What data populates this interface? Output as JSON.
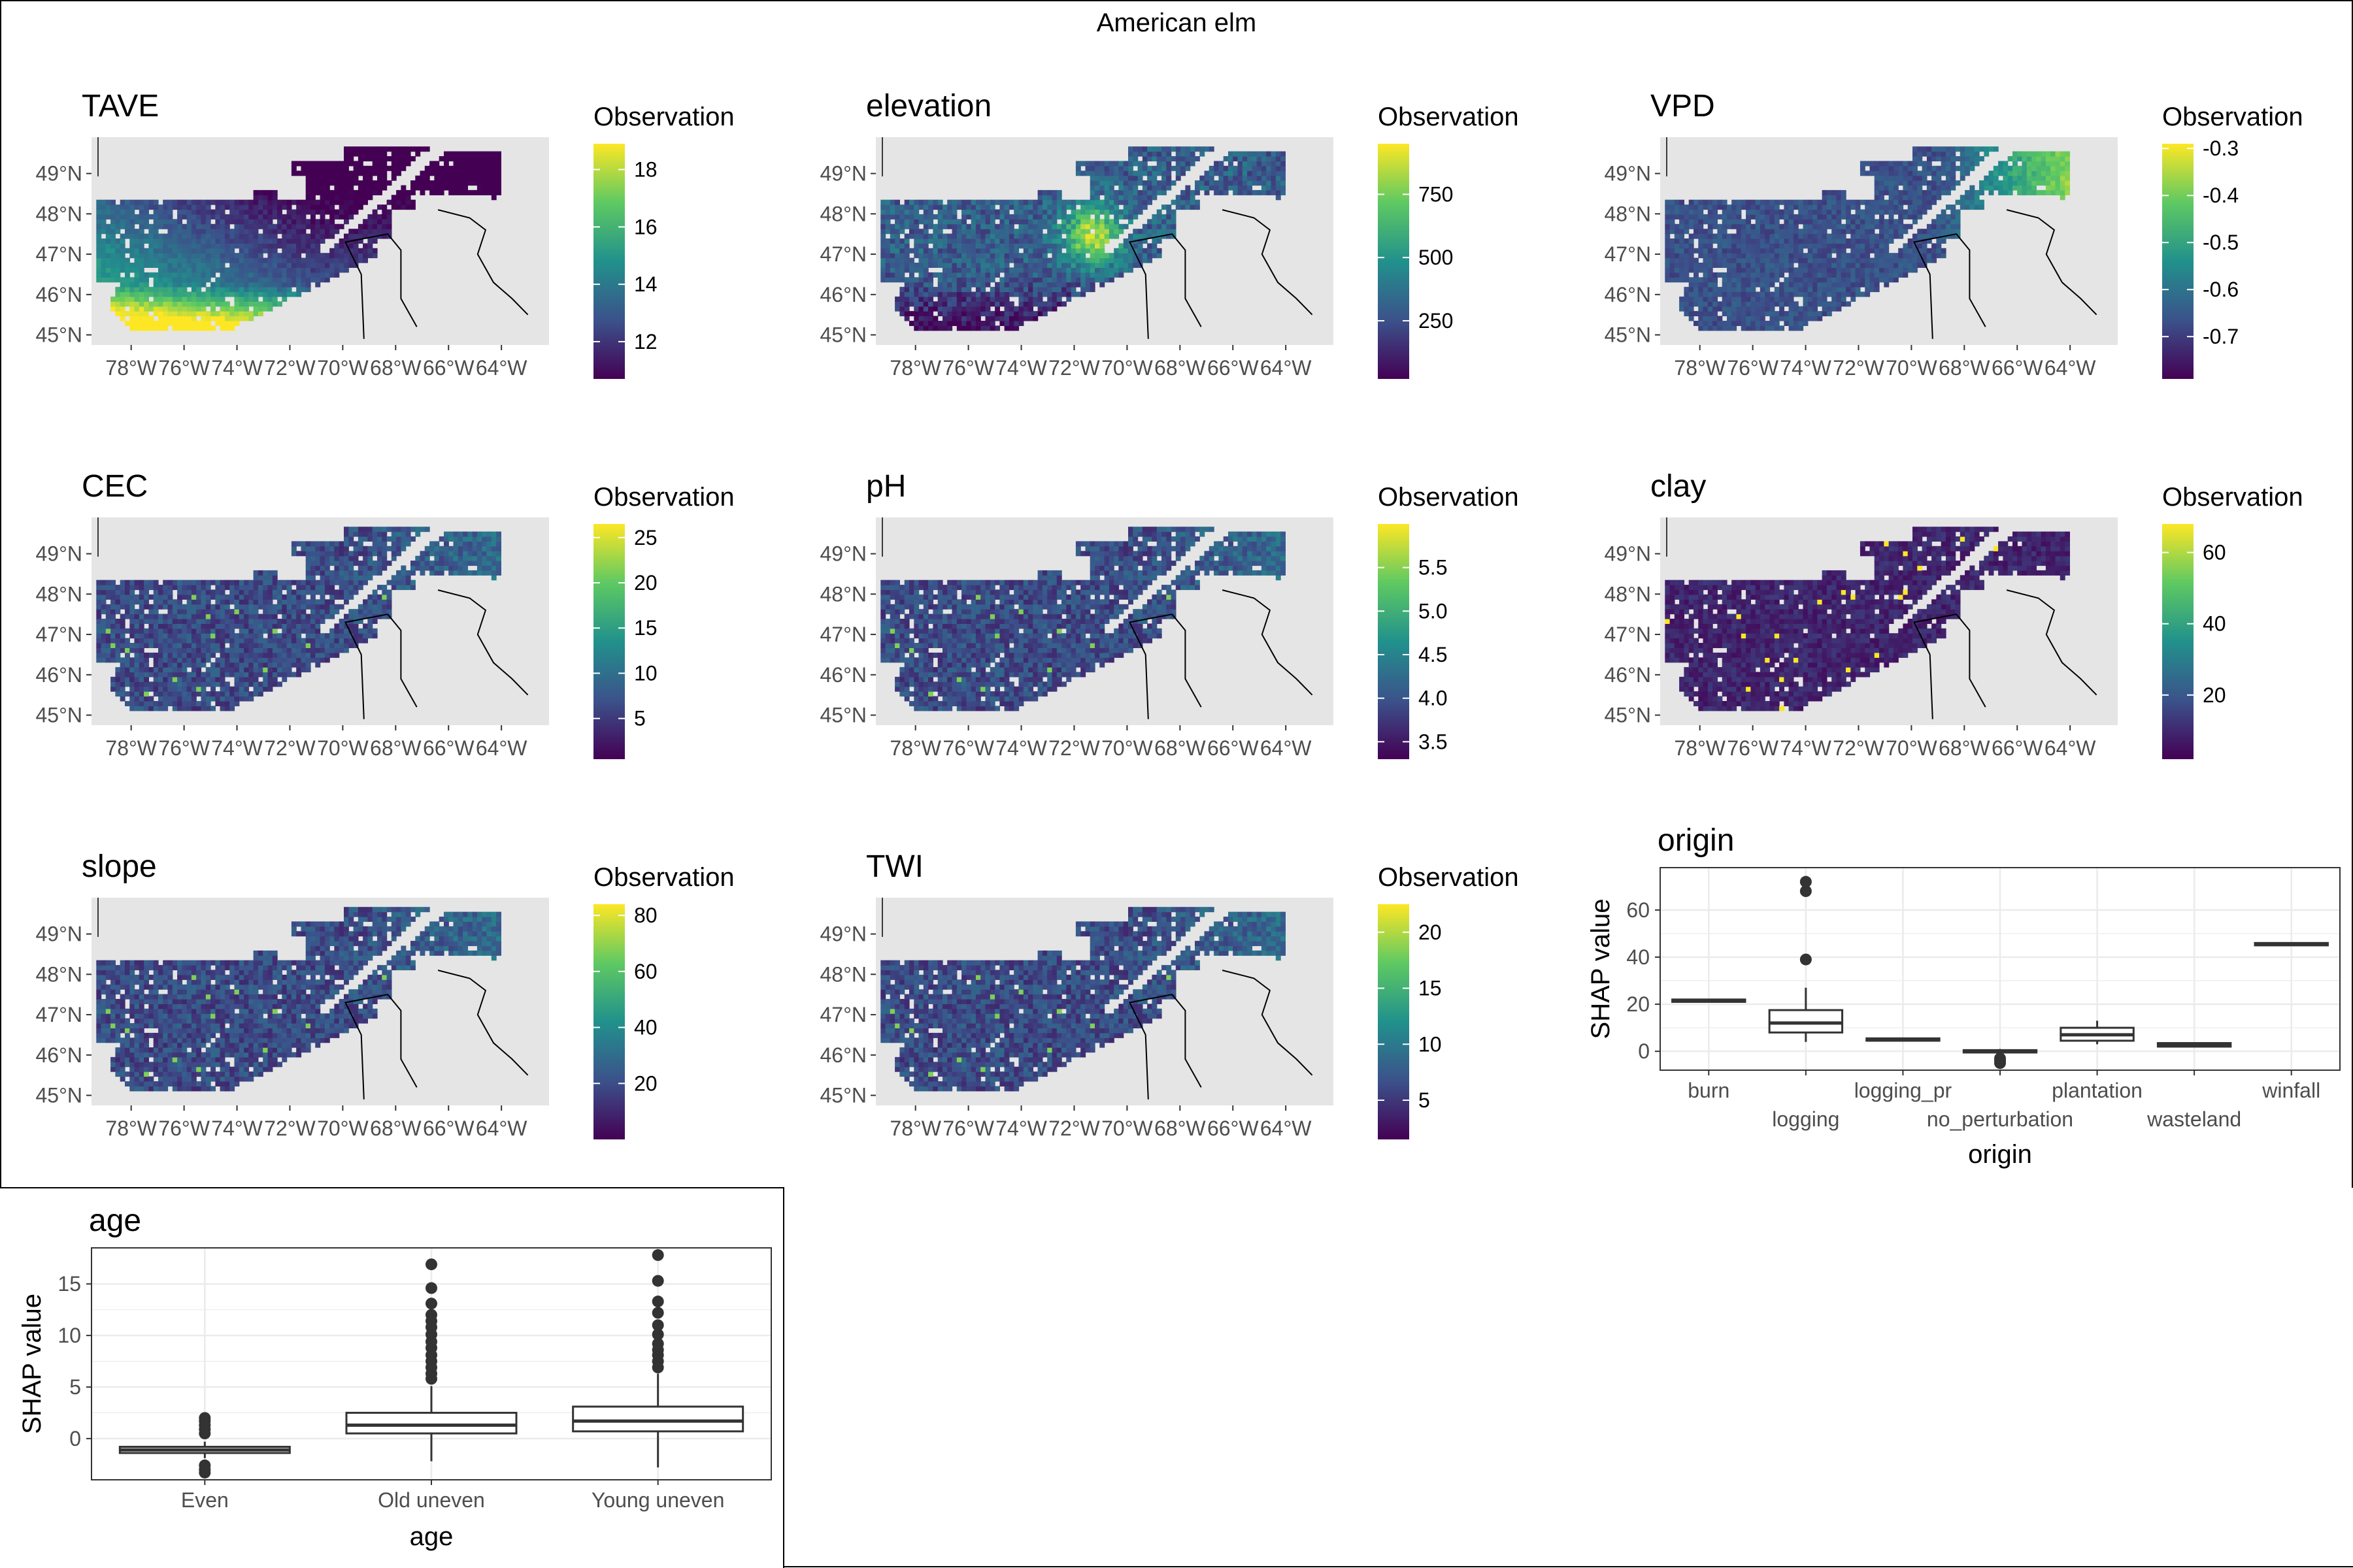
{
  "figure": {
    "title": "American elm",
    "colors": {
      "land": "#e5e5e5",
      "panel_border": "#333333",
      "grid": "#ebebeb",
      "viridis": [
        "#440154",
        "#3b528b",
        "#21918c",
        "#5ec962",
        "#fde725"
      ]
    }
  },
  "chart_data": [
    {
      "type": "heatmap",
      "title": "TAVE",
      "legend_title": "Observation",
      "colorbar": {
        "min": 10.7,
        "max": 18.9,
        "ticks": [
          "12",
          "14",
          "16",
          "18"
        ],
        "tick_values": [
          12,
          14,
          16,
          18
        ]
      },
      "pattern": "south_hot",
      "x_ticks": [
        "78°W",
        "76°W",
        "74°W",
        "72°W",
        "70°W",
        "68°W",
        "66°W",
        "64°W"
      ],
      "y_ticks": [
        "49°N",
        "48°N",
        "47°N",
        "46°N",
        "45°N"
      ]
    },
    {
      "type": "heatmap",
      "title": "elevation",
      "legend_title": "Observation",
      "colorbar": {
        "min": 20,
        "max": 950,
        "ticks": [
          "250",
          "500",
          "750"
        ],
        "tick_values": [
          250,
          500,
          750
        ]
      },
      "pattern": "highlands",
      "x_ticks": [
        "78°W",
        "76°W",
        "74°W",
        "72°W",
        "70°W",
        "68°W",
        "66°W",
        "64°W"
      ],
      "y_ticks": [
        "49°N",
        "48°N",
        "47°N",
        "46°N",
        "45°N"
      ]
    },
    {
      "type": "heatmap",
      "title": "VPD",
      "legend_title": "Observation",
      "colorbar": {
        "min": -0.79,
        "max": -0.29,
        "ticks": [
          "-0.3",
          "-0.4",
          "-0.5",
          "-0.6",
          "-0.7"
        ],
        "tick_values": [
          -0.3,
          -0.4,
          -0.5,
          -0.6,
          -0.7
        ]
      },
      "pattern": "east_high",
      "x_ticks": [
        "78°W",
        "76°W",
        "74°W",
        "72°W",
        "70°W",
        "68°W",
        "66°W",
        "64°W"
      ],
      "y_ticks": [
        "49°N",
        "48°N",
        "47°N",
        "46°N",
        "45°N"
      ]
    },
    {
      "type": "heatmap",
      "title": "CEC",
      "legend_title": "Observation",
      "colorbar": {
        "min": 0.5,
        "max": 26.5,
        "ticks": [
          "5",
          "10",
          "15",
          "20",
          "25"
        ],
        "tick_values": [
          5,
          10,
          15,
          20,
          25
        ]
      },
      "pattern": "low_speckled",
      "x_ticks": [
        "78°W",
        "76°W",
        "74°W",
        "72°W",
        "70°W",
        "68°W",
        "66°W",
        "64°W"
      ],
      "y_ticks": [
        "49°N",
        "48°N",
        "47°N",
        "46°N",
        "45°N"
      ]
    },
    {
      "type": "heatmap",
      "title": "pH",
      "legend_title": "Observation",
      "colorbar": {
        "min": 3.3,
        "max": 6.0,
        "ticks": [
          "3.5",
          "4.0",
          "4.5",
          "5.0",
          "5.5"
        ],
        "tick_values": [
          3.5,
          4.0,
          4.5,
          5.0,
          5.5
        ]
      },
      "pattern": "low_speckled",
      "x_ticks": [
        "78°W",
        "76°W",
        "74°W",
        "72°W",
        "70°W",
        "68°W",
        "66°W",
        "64°W"
      ],
      "y_ticks": [
        "49°N",
        "48°N",
        "47°N",
        "46°N",
        "45°N"
      ]
    },
    {
      "type": "heatmap",
      "title": "clay",
      "legend_title": "Observation",
      "colorbar": {
        "min": 2,
        "max": 68,
        "ticks": [
          "20",
          "40",
          "60"
        ],
        "tick_values": [
          20,
          40,
          60
        ]
      },
      "pattern": "very_low",
      "x_ticks": [
        "78°W",
        "76°W",
        "74°W",
        "72°W",
        "70°W",
        "68°W",
        "66°W",
        "64°W"
      ],
      "y_ticks": [
        "49°N",
        "48°N",
        "47°N",
        "46°N",
        "45°N"
      ]
    },
    {
      "type": "heatmap",
      "title": "slope",
      "legend_title": "Observation",
      "colorbar": {
        "min": 0,
        "max": 84,
        "ticks": [
          "20",
          "40",
          "60",
          "80"
        ],
        "tick_values": [
          20,
          40,
          60,
          80
        ]
      },
      "pattern": "low_speckled",
      "x_ticks": [
        "78°W",
        "76°W",
        "74°W",
        "72°W",
        "70°W",
        "68°W",
        "66°W",
        "64°W"
      ],
      "y_ticks": [
        "49°N",
        "48°N",
        "47°N",
        "46°N",
        "45°N"
      ]
    },
    {
      "type": "heatmap",
      "title": "TWI",
      "legend_title": "Observation",
      "colorbar": {
        "min": 1.5,
        "max": 22.5,
        "ticks": [
          "5",
          "10",
          "15",
          "20"
        ],
        "tick_values": [
          5,
          10,
          15,
          20
        ]
      },
      "pattern": "low_speckled",
      "x_ticks": [
        "78°W",
        "76°W",
        "74°W",
        "72°W",
        "70°W",
        "68°W",
        "66°W",
        "64°W"
      ],
      "y_ticks": [
        "49°N",
        "48°N",
        "47°N",
        "46°N",
        "45°N"
      ]
    },
    {
      "type": "box",
      "title": "origin",
      "xlabel": "origin",
      "ylabel": "SHAP value",
      "ylim": [
        -8,
        78
      ],
      "y_ticks": [
        0,
        20,
        40,
        60
      ],
      "categories": [
        "burn",
        "logging",
        "logging_pr",
        "no_perturbation",
        "plantation",
        "wasteland",
        "winfall"
      ],
      "boxes": [
        {
          "q1": 21,
          "median": 21.5,
          "q3": 22,
          "lower": 21,
          "upper": 22,
          "outliers": []
        },
        {
          "q1": 8,
          "median": 12,
          "q3": 17.5,
          "lower": 4,
          "upper": 27,
          "outliers": [
            39,
            68,
            72
          ]
        },
        {
          "q1": 4.5,
          "median": 5,
          "q3": 5.5,
          "lower": 4.5,
          "upper": 5.5,
          "outliers": []
        },
        {
          "q1": -0.5,
          "median": 0,
          "q3": 0.5,
          "lower": -1.5,
          "upper": 1,
          "outliers": [
            -3,
            -4,
            -5
          ]
        },
        {
          "q1": 4.5,
          "median": 7,
          "q3": 10,
          "lower": 3,
          "upper": 13,
          "outliers": []
        },
        {
          "q1": 2,
          "median": 2.5,
          "q3": 3.5,
          "lower": 2,
          "upper": 3.5,
          "outliers": []
        },
        {
          "q1": 45,
          "median": 45.5,
          "q3": 46,
          "lower": 45,
          "upper": 46,
          "outliers": []
        }
      ]
    },
    {
      "type": "box",
      "title": "age",
      "xlabel": "age",
      "ylabel": "SHAP value",
      "ylim": [
        -4,
        18.5
      ],
      "y_ticks": [
        0,
        5,
        10,
        15
      ],
      "categories": [
        "Even",
        "Old uneven",
        "Young uneven"
      ],
      "boxes": [
        {
          "q1": -1.4,
          "median": -1.1,
          "q3": -0.8,
          "lower": -1.9,
          "upper": -0.3,
          "outliers": [
            0.5,
            0.9,
            1.3,
            1.7,
            2.0,
            -2.6,
            -3.0,
            -3.3
          ]
        },
        {
          "q1": 0.5,
          "median": 1.3,
          "q3": 2.5,
          "lower": -2.2,
          "upper": 5.1,
          "outliers": [
            5.8,
            6.3,
            6.9,
            7.5,
            8.1,
            8.8,
            9.4,
            10.1,
            10.8,
            11.4,
            12.0,
            13.1,
            14.6,
            16.9
          ]
        },
        {
          "q1": 0.7,
          "median": 1.7,
          "q3": 3.1,
          "lower": -2.8,
          "upper": 6.3,
          "outliers": [
            6.9,
            7.5,
            8.1,
            8.6,
            9.2,
            10.1,
            11.0,
            12.2,
            13.3,
            15.3,
            17.8
          ]
        }
      ]
    }
  ]
}
